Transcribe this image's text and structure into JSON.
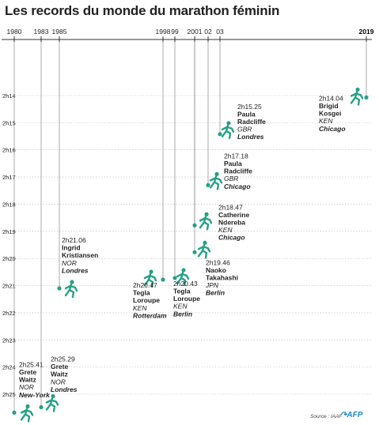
{
  "title": "Les records du monde du marathon féminin",
  "source_label": "Source : IAAF",
  "logo_text": "AFP",
  "colors": {
    "runner": "#26a086",
    "axis": "#333333",
    "grid": "#bbbbbb",
    "text": "#222222",
    "bold_year": "#000000"
  },
  "icons": {
    "runner": "runner-icon",
    "afp": "afp-logo"
  },
  "chart_data": {
    "type": "scatter",
    "title": "Les records du monde du marathon féminin",
    "xlabel": "",
    "ylabel": "",
    "x_ticks": [
      {
        "label": "1980",
        "year": 1980,
        "bold": false
      },
      {
        "label": "1983",
        "year": 1983,
        "bold": false
      },
      {
        "label": "1985",
        "year": 1985,
        "bold": false
      },
      {
        "label": "1998",
        "year": 1998,
        "bold": false
      },
      {
        "label": "99",
        "year": 1999,
        "bold": false
      },
      {
        "label": "2001",
        "year": 2001,
        "bold": false
      },
      {
        "label": "02",
        "year": 2002,
        "bold": false
      },
      {
        "label": "03",
        "year": 2003,
        "bold": false
      },
      {
        "label": "2019",
        "year": 2019,
        "bold": true
      }
    ],
    "y_ticks": [
      "2h14",
      "2h15",
      "2h16",
      "2h17",
      "2h18",
      "2h19",
      "2h20",
      "2h21",
      "2h22",
      "2h23",
      "2h24",
      "2h25"
    ],
    "ylim_minutes": [
      134,
      135.5
    ],
    "y_inverted": true,
    "grid": true,
    "records": [
      {
        "year": 1980,
        "time": "2h25.41",
        "minutes": 145.68,
        "athlete": [
          "Grete",
          "Waitz"
        ],
        "country": "NOR",
        "city": "New-York",
        "label_side": "right"
      },
      {
        "year": 1983,
        "time": "2h25.29",
        "minutes": 145.48,
        "athlete": [
          "Grete",
          "Waitz"
        ],
        "country": "NOR",
        "city": "Londres",
        "label_side": "right"
      },
      {
        "year": 1985,
        "time": "2h21.06",
        "minutes": 141.1,
        "athlete": [
          "Ingrid",
          "Kristiansen"
        ],
        "country": "NOR",
        "city": "Londres",
        "label_side": "right"
      },
      {
        "year": 1998,
        "time": "2h20.47",
        "minutes": 140.78,
        "athlete": [
          "Tegla",
          "Loroupe"
        ],
        "country": "KEN",
        "city": "Rotterdam",
        "label_side": "left"
      },
      {
        "year": 1999,
        "time": "2h20.43",
        "minutes": 140.72,
        "athlete": [
          "Tegla",
          "Loroupe"
        ],
        "country": "KEN",
        "city": "Berlin",
        "label_side": "left"
      },
      {
        "year": 2001,
        "time": "2h19.46",
        "minutes": 139.77,
        "athlete": [
          "Naoko",
          "Takahashi"
        ],
        "country": "JPN",
        "city": "Berlin",
        "label_side": "right"
      },
      {
        "year": 2001,
        "time": "2h18.47",
        "minutes": 138.78,
        "athlete": [
          "Catherine",
          "Ndereba"
        ],
        "country": "KEN",
        "city": "Chicago",
        "label_side": "right"
      },
      {
        "year": 2002,
        "time": "2h17.18",
        "minutes": 137.3,
        "athlete": [
          "Paula",
          "Radcliffe"
        ],
        "country": "GBR",
        "city": "Chicago",
        "label_side": "right"
      },
      {
        "year": 2003,
        "time": "2h15.25",
        "minutes": 135.42,
        "athlete": [
          "Paula",
          "Radcliffe"
        ],
        "country": "GBR",
        "city": "Londres",
        "label_side": "right"
      },
      {
        "year": 2019,
        "time": "2h14.04",
        "minutes": 134.07,
        "athlete": [
          "Brigid",
          "Kosgei"
        ],
        "country": "KEN",
        "city": "Chicago",
        "label_side": "left"
      }
    ]
  }
}
